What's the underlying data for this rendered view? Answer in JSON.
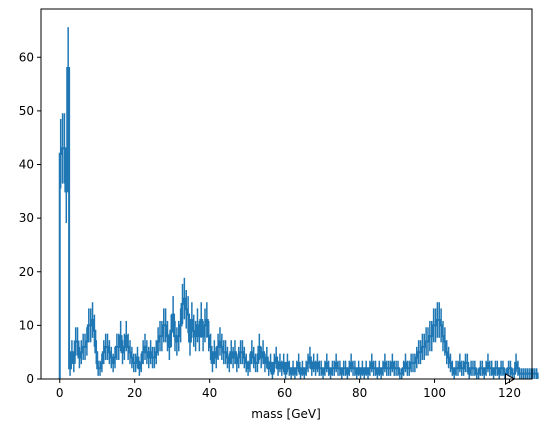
{
  "colors": {
    "series": "#1f77b4",
    "axes": "#000000",
    "background": "#ffffff"
  },
  "chart_data": {
    "type": "histogram",
    "title": "",
    "xlabel": "mass [GeV]",
    "ylabel": "",
    "xlim": [
      -5,
      126
    ],
    "ylim": [
      0,
      69
    ],
    "grid": false,
    "xticks": [
      0,
      20,
      40,
      60,
      80,
      100,
      120
    ],
    "yticks": [
      0,
      10,
      20,
      30,
      40,
      50,
      60
    ],
    "bin_width": 0.5,
    "bin_start": 0,
    "overflow_marker": "triangle-right",
    "values": [
      42,
      43,
      43,
      35,
      58,
      2,
      5,
      3,
      7,
      7,
      4,
      5,
      6,
      6,
      7,
      10,
      10,
      11,
      9,
      5,
      2,
      2,
      3,
      5,
      6,
      6,
      5,
      4,
      3,
      4,
      6,
      6,
      8,
      5,
      6,
      8,
      6,
      5,
      4,
      3,
      3,
      4,
      2,
      3,
      5,
      6,
      5,
      4,
      5,
      4,
      4,
      5,
      7,
      8,
      8,
      10,
      10,
      8,
      6,
      9,
      12,
      8,
      7,
      8,
      10,
      14,
      15,
      13,
      12,
      7,
      11,
      9,
      8,
      10,
      8,
      11,
      8,
      10,
      11,
      8,
      6,
      3,
      5,
      4,
      6,
      7,
      6,
      5,
      5,
      4,
      3,
      5,
      4,
      5,
      3,
      4,
      5,
      5,
      4,
      3,
      2,
      3,
      5,
      4,
      3,
      3,
      6,
      4,
      5,
      3,
      4,
      2,
      3,
      1,
      3,
      4,
      2,
      3,
      2,
      3,
      1,
      3,
      2,
      1,
      2,
      1,
      2,
      3,
      1,
      2,
      1,
      2,
      3,
      4,
      2,
      3,
      2,
      3,
      2,
      2,
      1,
      2,
      3,
      2,
      1,
      2,
      2,
      3,
      2,
      2,
      1,
      2,
      2,
      1,
      2,
      3,
      2,
      2,
      1,
      2,
      1,
      2,
      1,
      2,
      1,
      2,
      3,
      2,
      2,
      1,
      2,
      1,
      2,
      3,
      2,
      2,
      2,
      3,
      2,
      2,
      2,
      1,
      1,
      2,
      3,
      2,
      2,
      3,
      3,
      3,
      4,
      5,
      5,
      6,
      6,
      7,
      7,
      8,
      8,
      10,
      10,
      11,
      11,
      10,
      8,
      7,
      5,
      4,
      3,
      2,
      1,
      2,
      2,
      3,
      2,
      2,
      3,
      3,
      1,
      2,
      2,
      2,
      1,
      1,
      2,
      2,
      1,
      2,
      3,
      2,
      2,
      1,
      2,
      2,
      1,
      2,
      2,
      1,
      1,
      2,
      2,
      1,
      1,
      3,
      2,
      1,
      1,
      1,
      1,
      1,
      1,
      1,
      1,
      1,
      1
    ]
  }
}
